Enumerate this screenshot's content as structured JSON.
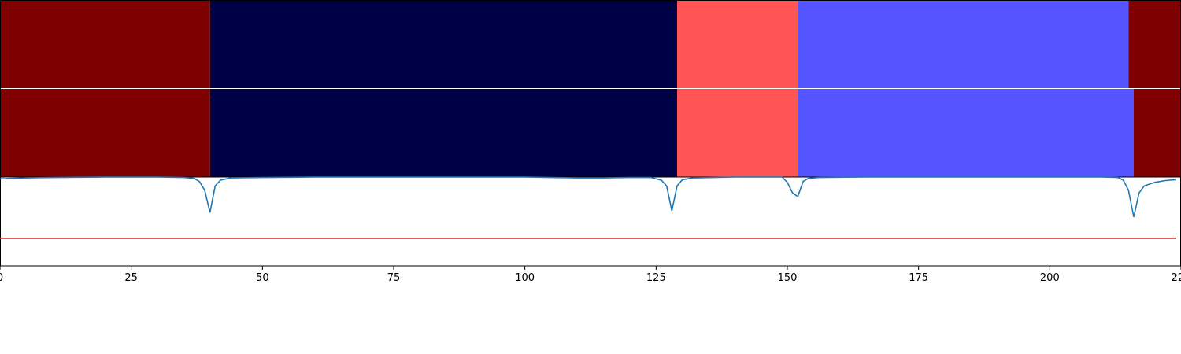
{
  "chart_data": {
    "type": "heatmap",
    "title": "",
    "xlabel": "",
    "ylabel": "",
    "xlim": [
      0,
      225
    ],
    "x_ticks": [
      0,
      25,
      50,
      75,
      100,
      125,
      150,
      175,
      200,
      225
    ],
    "x_tick_labels": [
      "0",
      "25",
      "50",
      "75",
      "100",
      "125",
      "150",
      "175",
      "200",
      "225"
    ],
    "grid": false,
    "segment_colors": {
      "dark_red": "#7f0000",
      "dark_navy": "#000046",
      "salmon": "#ff5555",
      "periwinkle": "#5555ff"
    },
    "segment_rows": [
      {
        "segments": [
          {
            "start": 0,
            "end": 40,
            "color": "#7f0000"
          },
          {
            "start": 40,
            "end": 129,
            "color": "#000046"
          },
          {
            "start": 129,
            "end": 152,
            "color": "#ff5555"
          },
          {
            "start": 152,
            "end": 215,
            "color": "#5555ff"
          },
          {
            "start": 215,
            "end": 225,
            "color": "#7f0000"
          }
        ]
      },
      {
        "segments": [
          {
            "start": 0,
            "end": 40,
            "color": "#7f0000"
          },
          {
            "start": 40,
            "end": 129,
            "color": "#000046"
          },
          {
            "start": 129,
            "end": 152,
            "color": "#ff5555"
          },
          {
            "start": 152,
            "end": 216,
            "color": "#5555ff"
          },
          {
            "start": 216,
            "end": 225,
            "color": "#7f0000"
          }
        ]
      }
    ],
    "line_panel": {
      "ylim": [
        0,
        1
      ],
      "series": [
        {
          "color": "#1f77b4",
          "points": [
            [
              0,
              0.98
            ],
            [
              5,
              0.99
            ],
            [
              10,
              0.995
            ],
            [
              20,
              1.0
            ],
            [
              30,
              1.0
            ],
            [
              35,
              0.995
            ],
            [
              37,
              0.985
            ],
            [
              38,
              0.95
            ],
            [
              39,
              0.85
            ],
            [
              40,
              0.6
            ],
            [
              41,
              0.9
            ],
            [
              42,
              0.965
            ],
            [
              44,
              0.99
            ],
            [
              50,
              0.995
            ],
            [
              60,
              1.0
            ],
            [
              80,
              1.0
            ],
            [
              100,
              1.0
            ],
            [
              105,
              0.995
            ],
            [
              110,
              0.99
            ],
            [
              115,
              0.99
            ],
            [
              120,
              0.995
            ],
            [
              124,
              0.995
            ],
            [
              126,
              0.965
            ],
            [
              127,
              0.9
            ],
            [
              128,
              0.62
            ],
            [
              129,
              0.9
            ],
            [
              130,
              0.97
            ],
            [
              132,
              0.99
            ],
            [
              140,
              1.0
            ],
            [
              149,
              1.0
            ],
            [
              150,
              0.94
            ],
            [
              151,
              0.82
            ],
            [
              152,
              0.78
            ],
            [
              153,
              0.95
            ],
            [
              154,
              0.985
            ],
            [
              156,
              0.995
            ],
            [
              165,
              1.0
            ],
            [
              210,
              1.0
            ],
            [
              213,
              0.995
            ],
            [
              214,
              0.965
            ],
            [
              215,
              0.85
            ],
            [
              216,
              0.55
            ],
            [
              217,
              0.82
            ],
            [
              218,
              0.9
            ],
            [
              220,
              0.94
            ],
            [
              222,
              0.96
            ],
            [
              224,
              0.97
            ],
            [
              225,
              0.97
            ]
          ]
        },
        {
          "color": "#d62728",
          "points": [
            [
              0,
              0.31
            ],
            [
              225,
              0.31
            ]
          ]
        }
      ]
    }
  }
}
